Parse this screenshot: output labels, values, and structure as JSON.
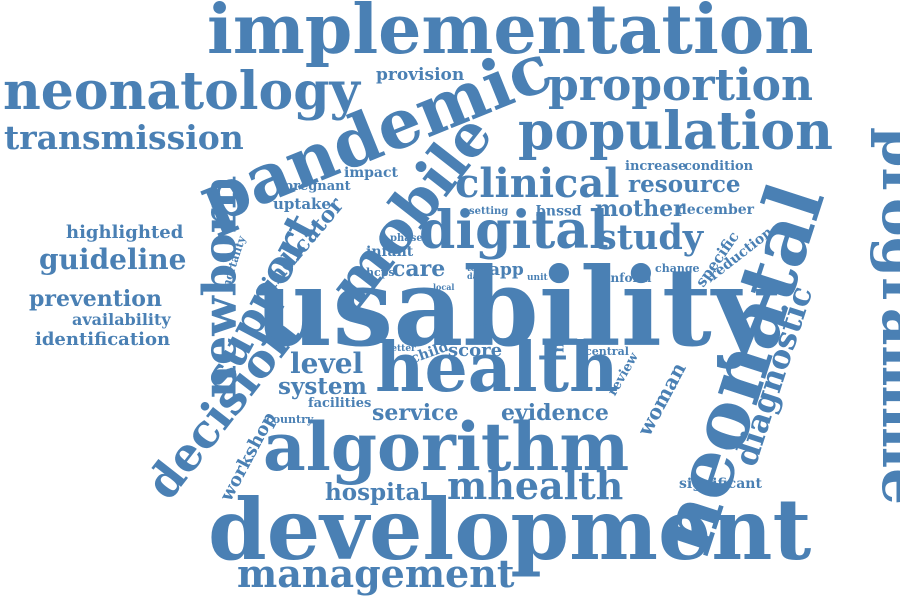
{
  "word_color": "#4a80b4",
  "background_color": "#ffffff",
  "words": {
    "implementation": "implementation",
    "neonatology": "neonatology",
    "proportion": "proportion",
    "provision": "provision",
    "transmission": "transmission",
    "pandemic": "pandemic",
    "population": "population",
    "programme": "programme",
    "mobile": "mobile",
    "newborn": "newborn",
    "clinical": "clinical",
    "increase": "increase",
    "condition": "condition",
    "resource": "resource",
    "impact": "impact",
    "pregnant": "pregnant",
    "uptake": "uptake",
    "support": "support",
    "indicator": "indicator",
    "digital": "digital",
    "setting": "setting",
    "pssuq": "pssuq",
    "mother": "mother",
    "december": "december",
    "highlighted": "highlighted",
    "guideline": "guideline",
    "mortality": "mortality",
    "infant": "infant",
    "phase": "phase",
    "study": "study",
    "specific": "specific",
    "reduction": "reduction",
    "hcps": "hcps",
    "care": "care",
    "total_data": "total data",
    "app": "app",
    "unit": "unit",
    "inform": "inform",
    "change": "change",
    "local": "local",
    "prevention": "prevention",
    "availability": "availability",
    "identification": "identification",
    "usability": "usability",
    "april": "april",
    "neotree": "neotree",
    "test": "test",
    "neonatal": "neonatal",
    "diagnostic": "diagnostic",
    "decision": "decision",
    "level": "level",
    "better": "better",
    "child": "child",
    "score": "score",
    "central": "central",
    "review": "review",
    "health": "health",
    "woman": "woman",
    "system": "system",
    "facilities": "facilities",
    "service": "service",
    "evidence": "evidence",
    "country": "country",
    "workshop": "workshop",
    "algorithm": "algorithm",
    "hospital": "hospital",
    "mhealth": "mhealth",
    "significant": "significant",
    "development": "development",
    "management": "management"
  }
}
